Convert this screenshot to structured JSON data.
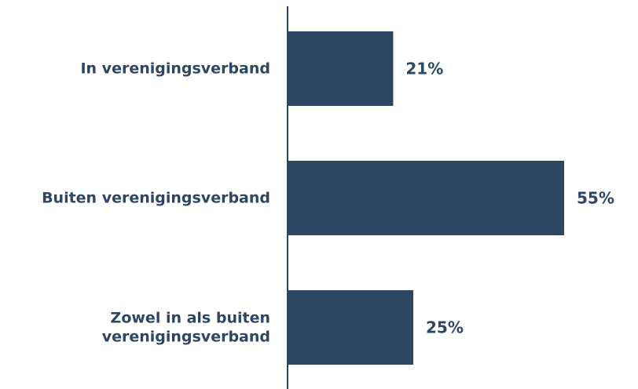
{
  "chart_data": {
    "type": "bar",
    "orientation": "horizontal",
    "categories": [
      [
        "In verenigingsverband"
      ],
      [
        "Buiten verenigingsverband"
      ],
      [
        "Zowel in als buiten",
        "verenigingsverband"
      ]
    ],
    "values": [
      21,
      55,
      25
    ],
    "value_labels": [
      "21%",
      "55%",
      "25%"
    ],
    "title": "",
    "xlabel": "",
    "ylabel": "",
    "xlim": [
      0,
      55
    ],
    "grid": false,
    "legend": "none",
    "colors": {
      "bar": "#2d4663",
      "text": "#2d4663",
      "axis": "#2d4663"
    }
  }
}
